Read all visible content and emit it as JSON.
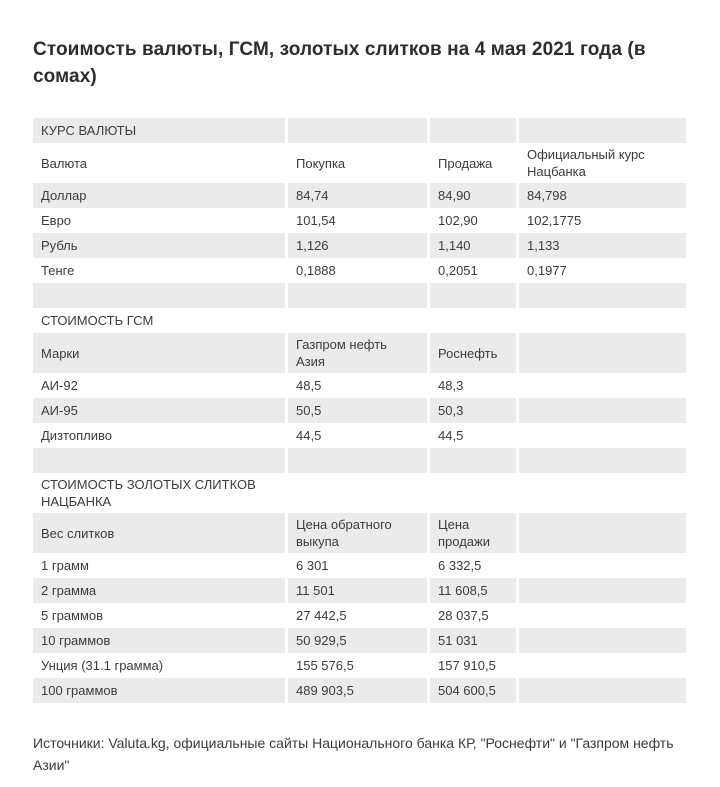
{
  "page": {
    "title": "Стоимость валюты, ГСМ, золотых слитков на 4 мая 2021 года (в сомах)",
    "sources": "Источники: Valuta.kg, официальные сайты Национального банка КР, \"Роснефти\" и \"Газпром нефть Азии\""
  },
  "colors": {
    "row_shade": "#ebebeb",
    "text": "#3c3c3c",
    "title_text": "#2d2d2d",
    "background": "#ffffff"
  },
  "tables": [
    {
      "section_title": "КУРС ВАЛЮТЫ",
      "columns": [
        "Валюта",
        "Покупка",
        "Продажа",
        "Официальный курс Нацбанка"
      ],
      "rows": [
        [
          "Доллар",
          "84,74",
          "84,90",
          "84,798"
        ],
        [
          "Евро",
          "101,54",
          "102,90",
          "102,1775"
        ],
        [
          "Рубль",
          "1,126",
          "1,140",
          "1,133"
        ],
        [
          "Тенге",
          "0,1888",
          "0,2051",
          "0,1977"
        ]
      ]
    },
    {
      "section_title": "СТОИМОСТЬ ГСМ",
      "columns": [
        "Марки",
        "Газпром нефть Азия",
        "Роснефть",
        ""
      ],
      "rows": [
        [
          "АИ-92",
          "48,5",
          "48,3",
          ""
        ],
        [
          "АИ-95",
          "50,5",
          "50,3",
          ""
        ],
        [
          "Дизтопливо",
          "44,5",
          "44,5",
          ""
        ]
      ]
    },
    {
      "section_title": "СТОИМОСТЬ ЗОЛОТЫХ СЛИТКОВ НАЦБАНКА",
      "columns": [
        "Вес слитков",
        "Цена обратного выкупа",
        "Цена продажи",
        ""
      ],
      "rows": [
        [
          "1 грамм",
          "6 301",
          "6 332,5",
          ""
        ],
        [
          "2 грамма",
          "11 501",
          "11 608,5",
          ""
        ],
        [
          "5 граммов",
          "27 442,5",
          "28 037,5",
          ""
        ],
        [
          "10 граммов",
          "50 929,5",
          "51 031",
          ""
        ],
        [
          "Унция (31.1 грамма)",
          "155 576,5",
          "157 910,5",
          ""
        ],
        [
          "100 граммов",
          "489 903,5",
          "504 600,5",
          ""
        ]
      ]
    }
  ]
}
